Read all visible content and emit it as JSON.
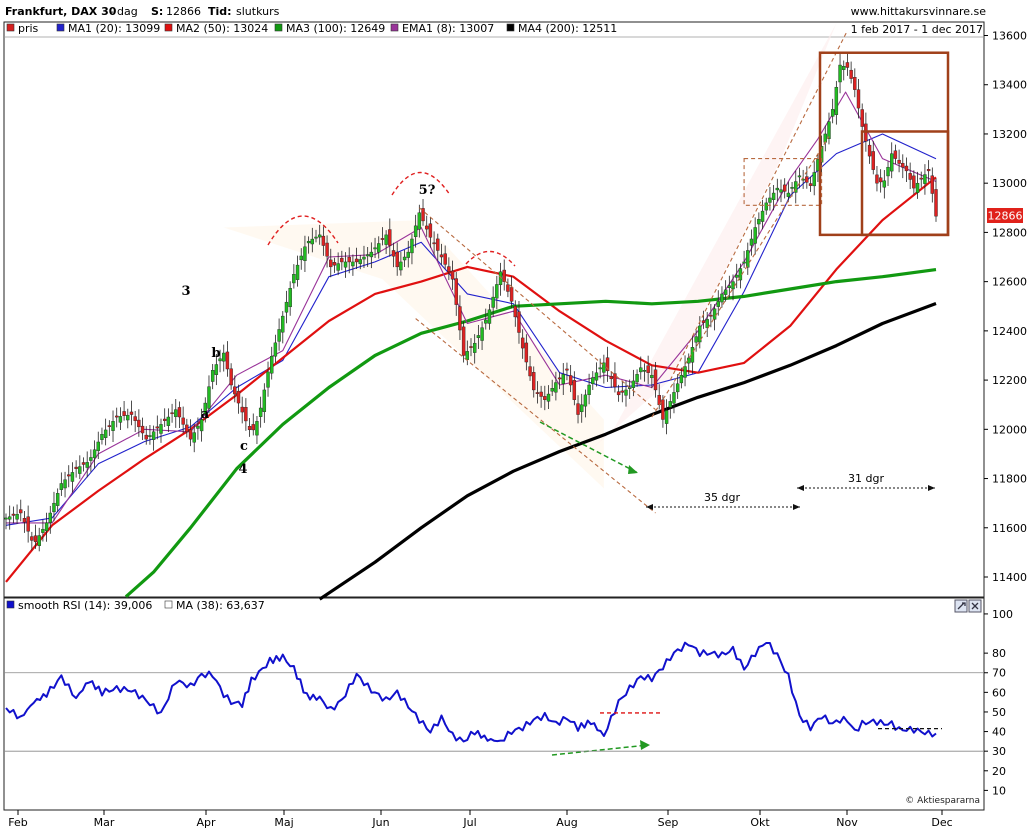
{
  "header": {
    "title": "Frankfurt, DAX 30",
    "separator": "-",
    "interval": "dag",
    "close_label": "S:",
    "close_value": "12866",
    "type_label": "Tid:",
    "type_value": "slutkurs",
    "website": "www.hittakursvinnare.se",
    "date_range": "1 feb 2017 - 1 dec 2017"
  },
  "price_legend": [
    {
      "label": "pris",
      "color": "#d62020"
    },
    {
      "label": "MA1 (20): 13099",
      "color": "#2222cc"
    },
    {
      "label": "MA2 (50): 13024",
      "color": "#e01010"
    },
    {
      "label": "MA3 (100): 12649",
      "color": "#119911"
    },
    {
      "label": "EMA1 (8): 13007",
      "color": "#993399"
    },
    {
      "label": "MA4 (200): 12511",
      "color": "#000000"
    }
  ],
  "price_badge": "12866",
  "rsi_legend": [
    {
      "label": "smooth RSI (14): 39,006",
      "color": "#1111cc"
    },
    {
      "label": "MA (38): 63,637",
      "color": "#ffffff"
    }
  ],
  "annotations": {
    "wave_3": "3",
    "wave_4": "4",
    "wave_5": "5?",
    "wave_a": "a",
    "wave_b": "b",
    "wave_c": "c",
    "span_35": "35 dgr",
    "span_31": "31 dgr"
  },
  "copyright": "© Aktiespararna",
  "colors": {
    "up_candle": "#22bb22",
    "down_candle": "#dd2222",
    "ma20": "#2222cc",
    "ma50": "#e01010",
    "ma100": "#119911",
    "ema8": "#993399",
    "ma200": "#000000",
    "rsi": "#1111cc",
    "channel": "#b86a40",
    "box": "#a0401a"
  },
  "chart_data": [
    {
      "type": "candlestick",
      "title": "Frankfurt, DAX 30",
      "x_labels": [
        "Feb",
        "Mar",
        "Apr",
        "Maj",
        "Jun",
        "Jul",
        "Aug",
        "Sep",
        "Okt",
        "Nov",
        "Dec"
      ],
      "y_ticks": [
        11400,
        11600,
        11800,
        12000,
        12200,
        12400,
        12600,
        12800,
        13000,
        13200,
        13400,
        13600
      ],
      "ylim": [
        11310,
        13670
      ],
      "last_close": 12866,
      "grid": false,
      "legend_position": "top-left",
      "close_points": [
        [
          0,
          11640
        ],
        [
          8,
          11660
        ],
        [
          15,
          11530
        ],
        [
          22,
          11620
        ],
        [
          30,
          11780
        ],
        [
          38,
          11840
        ],
        [
          45,
          11870
        ],
        [
          52,
          11980
        ],
        [
          60,
          12050
        ],
        [
          68,
          12060
        ],
        [
          76,
          11960
        ],
        [
          84,
          12020
        ],
        [
          92,
          12080
        ],
        [
          100,
          11960
        ],
        [
          106,
          12040
        ],
        [
          112,
          12240
        ],
        [
          118,
          12310
        ],
        [
          122,
          12180
        ],
        [
          128,
          12070
        ],
        [
          133,
          11980
        ],
        [
          137,
          12050
        ],
        [
          143,
          12270
        ],
        [
          150,
          12460
        ],
        [
          156,
          12630
        ],
        [
          163,
          12760
        ],
        [
          170,
          12790
        ],
        [
          176,
          12660
        ],
        [
          182,
          12680
        ],
        [
          190,
          12680
        ],
        [
          198,
          12720
        ],
        [
          206,
          12790
        ],
        [
          212,
          12660
        ],
        [
          218,
          12720
        ],
        [
          224,
          12880
        ],
        [
          230,
          12780
        ],
        [
          236,
          12700
        ],
        [
          242,
          12610
        ],
        [
          248,
          12300
        ],
        [
          254,
          12350
        ],
        [
          261,
          12460
        ],
        [
          268,
          12640
        ],
        [
          274,
          12520
        ],
        [
          280,
          12330
        ],
        [
          286,
          12160
        ],
        [
          292,
          12120
        ],
        [
          298,
          12190
        ],
        [
          304,
          12240
        ],
        [
          310,
          12060
        ],
        [
          317,
          12200
        ],
        [
          324,
          12270
        ],
        [
          332,
          12140
        ],
        [
          338,
          12170
        ],
        [
          344,
          12250
        ],
        [
          350,
          12220
        ],
        [
          356,
          12040
        ],
        [
          362,
          12150
        ],
        [
          370,
          12290
        ],
        [
          376,
          12420
        ],
        [
          382,
          12460
        ],
        [
          388,
          12550
        ],
        [
          394,
          12600
        ],
        [
          400,
          12680
        ],
        [
          406,
          12820
        ],
        [
          412,
          12920
        ],
        [
          418,
          12980
        ],
        [
          424,
          12960
        ],
        [
          430,
          13030
        ],
        [
          436,
          12990
        ],
        [
          442,
          13150
        ],
        [
          448,
          13300
        ],
        [
          452,
          13480
        ],
        [
          456,
          13470
        ],
        [
          460,
          13380
        ],
        [
          464,
          13230
        ],
        [
          468,
          13110
        ],
        [
          472,
          13000
        ],
        [
          476,
          13010
        ],
        [
          480,
          13120
        ],
        [
          484,
          13080
        ],
        [
          488,
          13050
        ],
        [
          492,
          12980
        ],
        [
          496,
          13020
        ],
        [
          500,
          13050
        ],
        [
          504,
          12866
        ]
      ],
      "moving_averages": [
        {
          "name": "MA1 (20): 13099",
          "points": [
            [
              0,
              11610
            ],
            [
              25,
              11640
            ],
            [
              50,
              11860
            ],
            [
              75,
              11950
            ],
            [
              100,
              12010
            ],
            [
              125,
              12170
            ],
            [
              150,
              12280
            ],
            [
              175,
              12620
            ],
            [
              200,
              12680
            ],
            [
              225,
              12760
            ],
            [
              250,
              12550
            ],
            [
              275,
              12510
            ],
            [
              300,
              12230
            ],
            [
              325,
              12170
            ],
            [
              350,
              12180
            ],
            [
              375,
              12230
            ],
            [
              400,
              12560
            ],
            [
              425,
              12950
            ],
            [
              450,
              13120
            ],
            [
              475,
              13200
            ],
            [
              504,
              13099
            ]
          ]
        },
        {
          "name": "MA2 (50): 13024",
          "points": [
            [
              0,
              11380
            ],
            [
              25,
              11610
            ],
            [
              50,
              11750
            ],
            [
              75,
              11880
            ],
            [
              100,
              12000
            ],
            [
              125,
              12140
            ],
            [
              150,
              12290
            ],
            [
              175,
              12440
            ],
            [
              200,
              12550
            ],
            [
              225,
              12600
            ],
            [
              250,
              12660
            ],
            [
              275,
              12620
            ],
            [
              300,
              12480
            ],
            [
              325,
              12360
            ],
            [
              350,
              12260
            ],
            [
              375,
              12230
            ],
            [
              400,
              12270
            ],
            [
              425,
              12420
            ],
            [
              450,
              12650
            ],
            [
              475,
              12850
            ],
            [
              504,
              13024
            ]
          ]
        },
        {
          "name": "MA3 (100): 12649",
          "points": [
            [
              65,
              11320
            ],
            [
              80,
              11420
            ],
            [
              100,
              11600
            ],
            [
              125,
              11840
            ],
            [
              150,
              12020
            ],
            [
              175,
              12170
            ],
            [
              200,
              12300
            ],
            [
              225,
              12390
            ],
            [
              250,
              12440
            ],
            [
              275,
              12500
            ],
            [
              300,
              12510
            ],
            [
              325,
              12520
            ],
            [
              350,
              12510
            ],
            [
              375,
              12520
            ],
            [
              400,
              12540
            ],
            [
              425,
              12570
            ],
            [
              450,
              12600
            ],
            [
              475,
              12620
            ],
            [
              504,
              12649
            ]
          ]
        },
        {
          "name": "EMA1 (8): 13007",
          "points": [
            [
              0,
              11620
            ],
            [
              25,
              11620
            ],
            [
              50,
              11900
            ],
            [
              75,
              12000
            ],
            [
              100,
              11990
            ],
            [
              125,
              12220
            ],
            [
              150,
              12320
            ],
            [
              175,
              12700
            ],
            [
              200,
              12710
            ],
            [
              225,
              12820
            ],
            [
              250,
              12430
            ],
            [
              275,
              12480
            ],
            [
              300,
              12180
            ],
            [
              325,
              12220
            ],
            [
              350,
              12170
            ],
            [
              375,
              12400
            ],
            [
              400,
              12680
            ],
            [
              425,
              13020
            ],
            [
              440,
              13180
            ],
            [
              455,
              13370
            ],
            [
              475,
              13100
            ],
            [
              504,
              13007
            ]
          ]
        },
        {
          "name": "MA4 (200): 12511",
          "points": [
            [
              170,
              11310
            ],
            [
              200,
              11460
            ],
            [
              225,
              11600
            ],
            [
              250,
              11730
            ],
            [
              275,
              11830
            ],
            [
              300,
              11910
            ],
            [
              325,
              11980
            ],
            [
              350,
              12060
            ],
            [
              375,
              12130
            ],
            [
              400,
              12190
            ],
            [
              425,
              12260
            ],
            [
              450,
              12340
            ],
            [
              475,
              12430
            ],
            [
              504,
              12511
            ]
          ]
        }
      ]
    },
    {
      "type": "line",
      "title": "smooth RSI (14): 39,006",
      "y_ticks": [
        10,
        20,
        30,
        40,
        50,
        60,
        70,
        80,
        100
      ],
      "ylim": [
        0,
        102
      ],
      "reference_lines": [
        30,
        70
      ],
      "last_value": 39.006,
      "ma_value": 63.637,
      "series": [
        {
          "name": "smooth RSI (14): 39,006",
          "points": [
            [
              0,
              52
            ],
            [
              8,
              47
            ],
            [
              15,
              55
            ],
            [
              22,
              59
            ],
            [
              30,
              68
            ],
            [
              38,
              57
            ],
            [
              45,
              66
            ],
            [
              52,
              60
            ],
            [
              60,
              62
            ],
            [
              68,
              61
            ],
            [
              76,
              56
            ],
            [
              84,
              49
            ],
            [
              92,
              66
            ],
            [
              100,
              63
            ],
            [
              106,
              69
            ],
            [
              112,
              69
            ],
            [
              118,
              59
            ],
            [
              122,
              55
            ],
            [
              128,
              54
            ],
            [
              133,
              66
            ],
            [
              137,
              70
            ],
            [
              143,
              76
            ],
            [
              150,
              78
            ],
            [
              156,
              72
            ],
            [
              163,
              58
            ],
            [
              170,
              57
            ],
            [
              176,
              51
            ],
            [
              182,
              56
            ],
            [
              190,
              69
            ],
            [
              198,
              61
            ],
            [
              206,
              56
            ],
            [
              212,
              60
            ],
            [
              218,
              53
            ],
            [
              224,
              46
            ],
            [
              230,
              40
            ],
            [
              236,
              47
            ],
            [
              242,
              38
            ],
            [
              248,
              35
            ],
            [
              254,
              40
            ],
            [
              261,
              36
            ],
            [
              268,
              35
            ],
            [
              274,
              40
            ],
            [
              280,
              42
            ],
            [
              286,
              46
            ],
            [
              292,
              48
            ],
            [
              298,
              44
            ],
            [
              304,
              47
            ],
            [
              310,
              42
            ],
            [
              317,
              45
            ],
            [
              324,
              38
            ],
            [
              332,
              55
            ],
            [
              338,
              62
            ],
            [
              344,
              68
            ],
            [
              350,
              67
            ],
            [
              356,
              73
            ],
            [
              362,
              80
            ],
            [
              370,
              85
            ],
            [
              376,
              80
            ],
            [
              382,
              80
            ],
            [
              388,
              79
            ],
            [
              394,
              82
            ],
            [
              400,
              72
            ],
            [
              406,
              80
            ],
            [
              412,
              86
            ],
            [
              418,
              79
            ],
            [
              424,
              68
            ],
            [
              430,
              48
            ],
            [
              436,
              42
            ],
            [
              442,
              48
            ],
            [
              448,
              44
            ],
            [
              452,
              46
            ],
            [
              456,
              46
            ],
            [
              460,
              40
            ],
            [
              464,
              44
            ],
            [
              468,
              45
            ],
            [
              472,
              45
            ],
            [
              476,
              44
            ],
            [
              480,
              44
            ],
            [
              484,
              41
            ],
            [
              488,
              41
            ],
            [
              492,
              41
            ],
            [
              496,
              40
            ],
            [
              500,
              39
            ],
            [
              504,
              39
            ]
          ]
        }
      ]
    }
  ]
}
